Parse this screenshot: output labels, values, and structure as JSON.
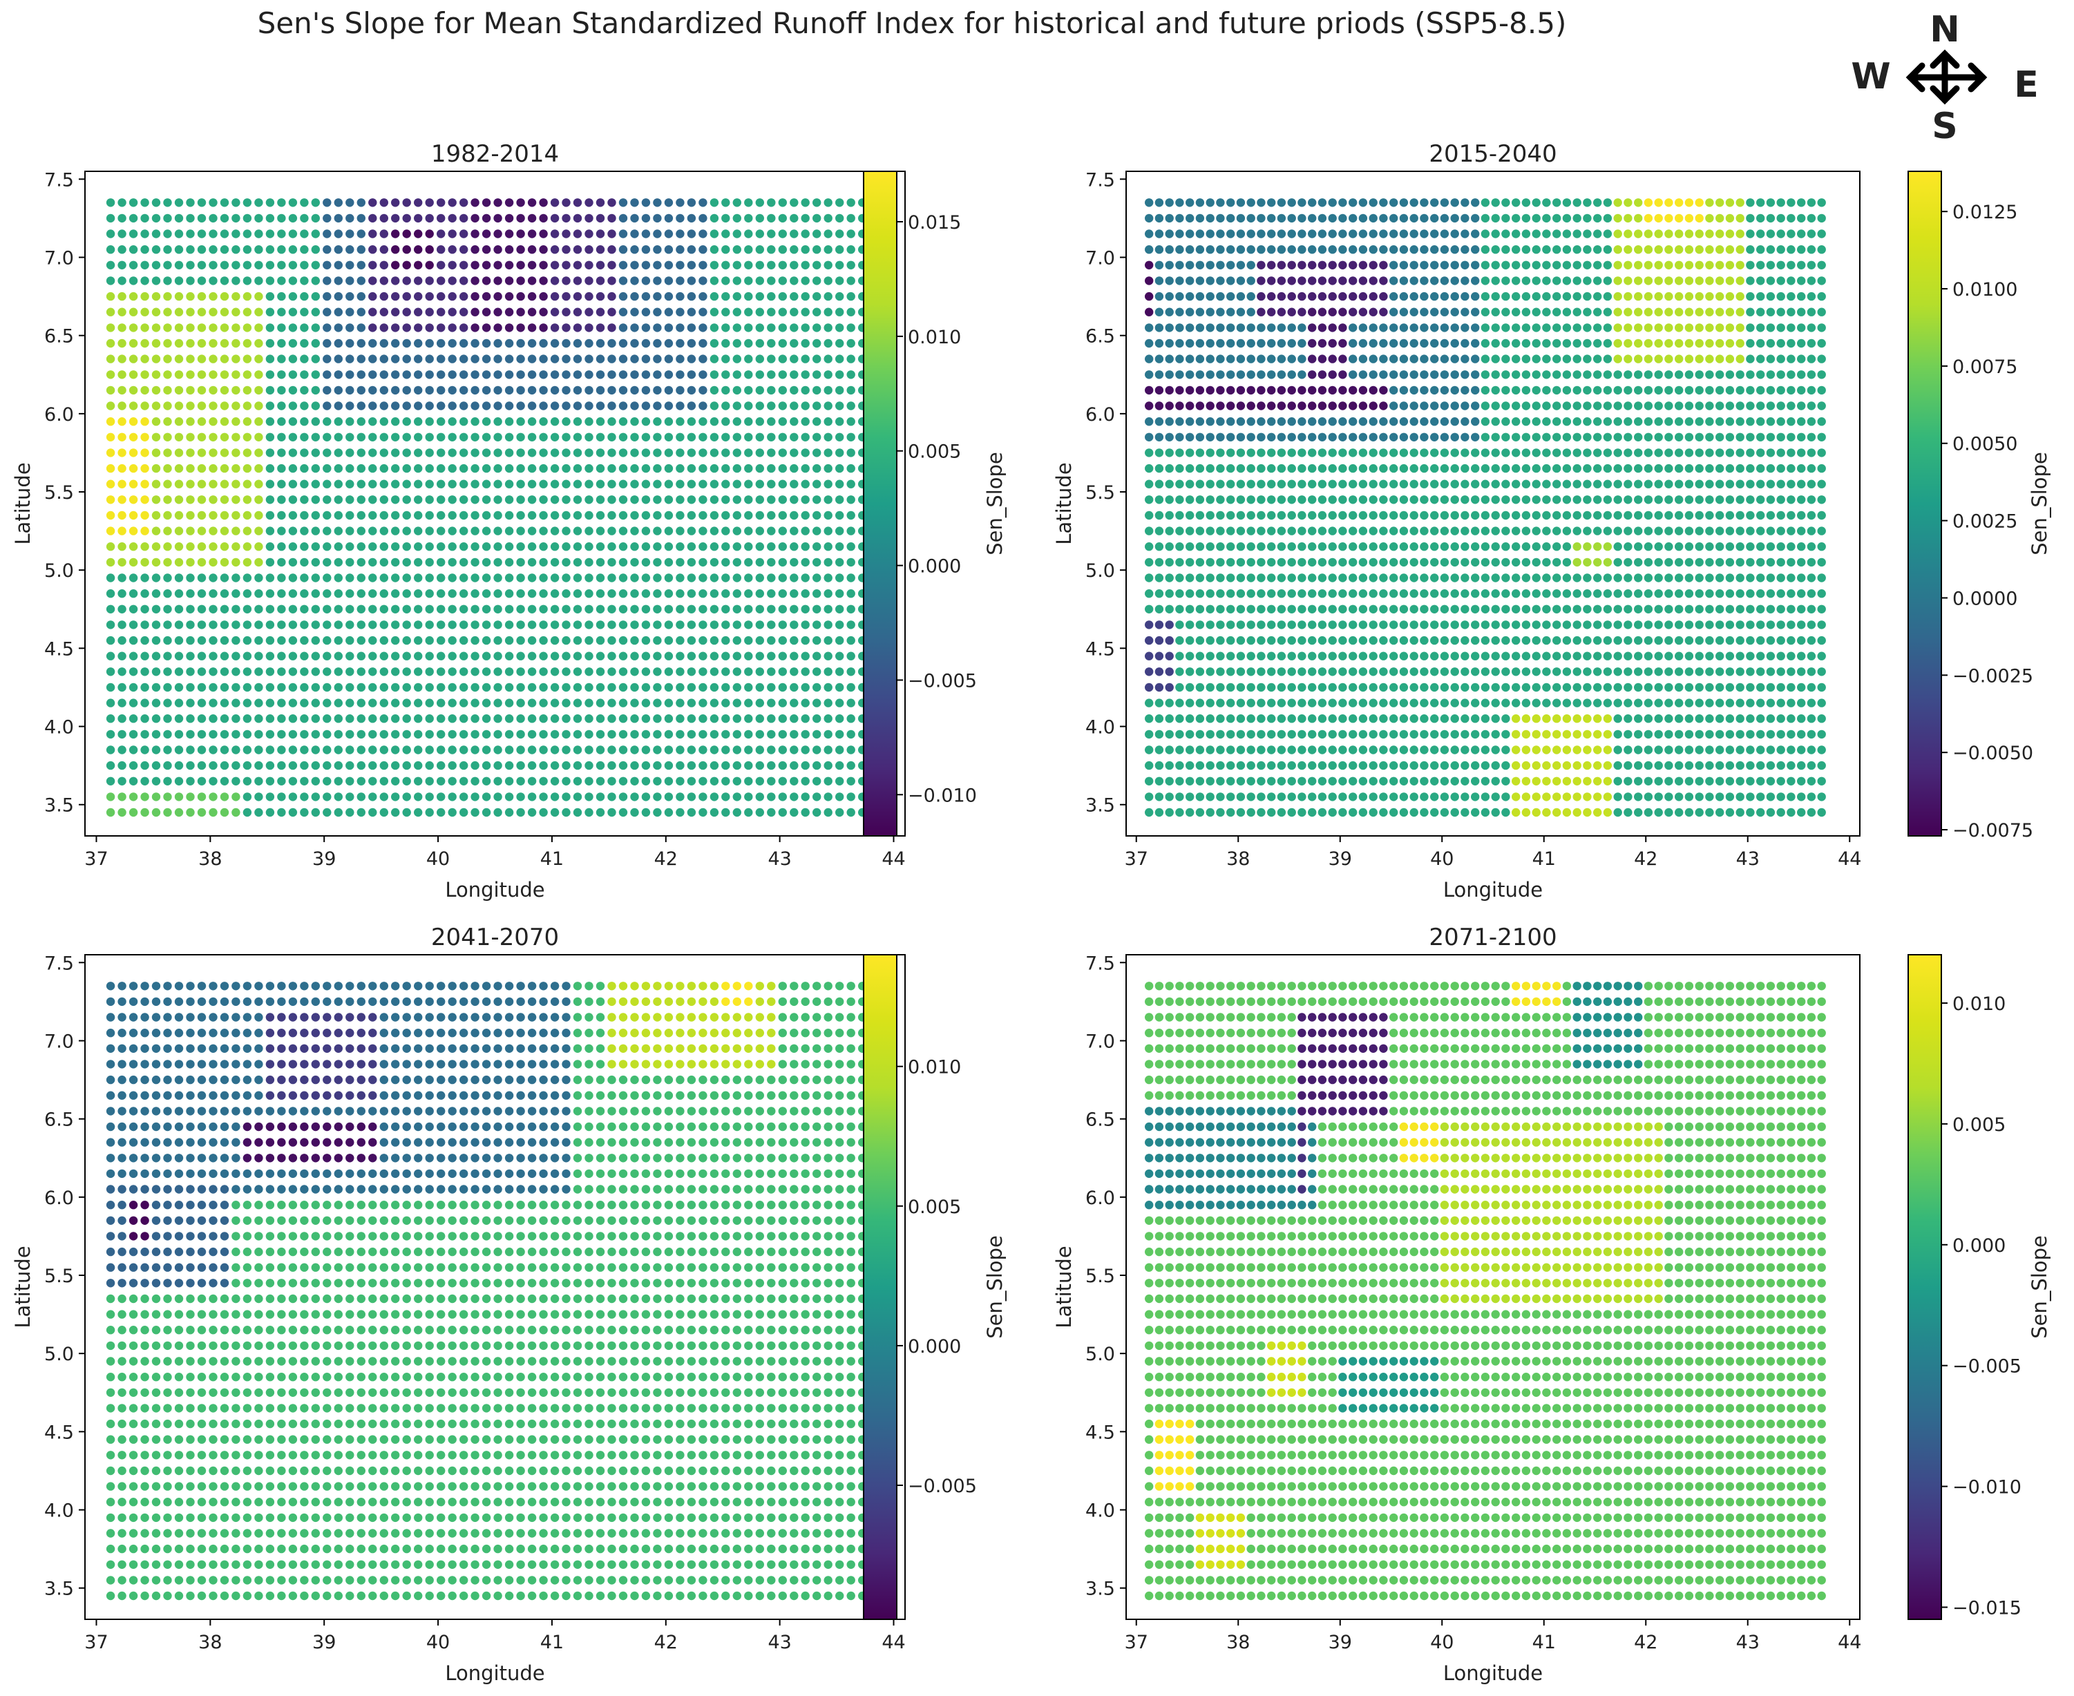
{
  "title": "Sen's Slope for Mean Standardized Runoff Index for historical and future priods (SSP5-8.5)",
  "compass": {
    "n": "N",
    "s": "S",
    "w": "W",
    "e": "E"
  },
  "colormap": "viridis",
  "chart_data": [
    {
      "type": "scatter",
      "title": "1982-2014",
      "xlabel": "Longitude",
      "ylabel": "Latitude",
      "xlim": [
        36.9,
        44.1
      ],
      "ylim": [
        3.3,
        7.55
      ],
      "xticks": [
        37,
        38,
        39,
        40,
        41,
        42,
        43,
        44
      ],
      "yticks": [
        3.5,
        4.0,
        4.5,
        5.0,
        5.5,
        6.0,
        6.5,
        7.0,
        7.5
      ],
      "colorbar": {
        "label": "Sen_Slope",
        "range": [
          -0.0118,
          0.0172
        ],
        "ticks": [
          -0.01,
          -0.005,
          0.0,
          0.005,
          0.01,
          0.015
        ],
        "tick_labels": [
          "−0.010",
          "−0.005",
          "0.000",
          "0.005",
          "0.010",
          "0.015"
        ]
      },
      "grid": {
        "lon_start": 37.125,
        "lat_start": 3.45,
        "step": 0.1,
        "cols": 67,
        "rows": 40
      },
      "base_value": 0.004,
      "regions": [
        {
          "lon": [
            39.0,
            42.4
          ],
          "lat": [
            6.0,
            7.4
          ],
          "value": -0.003
        },
        {
          "lon": [
            39.4,
            41.6
          ],
          "lat": [
            6.5,
            7.4
          ],
          "value": -0.0085
        },
        {
          "lon": [
            39.6,
            40.0
          ],
          "lat": [
            6.9,
            7.2
          ],
          "value": -0.0112
        },
        {
          "lon": [
            40.3,
            41.0
          ],
          "lat": [
            6.5,
            7.4
          ],
          "value": -0.0105
        },
        {
          "lon": [
            37.0,
            38.5
          ],
          "lat": [
            5.0,
            6.8
          ],
          "value": 0.011
        },
        {
          "lon": [
            37.1,
            37.5
          ],
          "lat": [
            5.2,
            6.0
          ],
          "value": 0.0165
        },
        {
          "lon": [
            37.0,
            38.3
          ],
          "lat": [
            3.4,
            3.6
          ],
          "value": 0.008
        }
      ]
    },
    {
      "type": "scatter",
      "title": "2015-2040",
      "xlabel": "Longitude",
      "ylabel": "Latitude",
      "xlim": [
        36.9,
        44.1
      ],
      "ylim": [
        3.3,
        7.55
      ],
      "xticks": [
        37,
        38,
        39,
        40,
        41,
        42,
        43,
        44
      ],
      "yticks": [
        3.5,
        4.0,
        4.5,
        5.0,
        5.5,
        6.0,
        6.5,
        7.0,
        7.5
      ],
      "colorbar": {
        "label": "Sen_Slope",
        "range": [
          -0.0077,
          0.0138
        ],
        "ticks": [
          -0.0075,
          -0.005,
          -0.0025,
          0.0,
          0.0025,
          0.005,
          0.0075,
          0.01,
          0.0125
        ],
        "tick_labels": [
          "−0.0075",
          "−0.0050",
          "−0.0025",
          "0.0000",
          "0.0025",
          "0.0050",
          "0.0075",
          "0.0100",
          "0.0125"
        ]
      },
      "grid": {
        "lon_start": 37.125,
        "lat_start": 3.45,
        "step": 0.1,
        "cols": 67,
        "rows": 40
      },
      "base_value": 0.004,
      "regions": [
        {
          "lon": [
            37.0,
            40.4
          ],
          "lat": [
            5.8,
            7.4
          ],
          "value": 0.0
        },
        {
          "lon": [
            37.0,
            37.4
          ],
          "lat": [
            4.2,
            4.7
          ],
          "value": -0.004
        },
        {
          "lon": [
            37.0,
            37.2
          ],
          "lat": [
            6.6,
            7.0
          ],
          "value": -0.0072
        },
        {
          "lon": [
            38.2,
            39.5
          ],
          "lat": [
            6.6,
            7.0
          ],
          "value": -0.006
        },
        {
          "lon": [
            37.0,
            39.5
          ],
          "lat": [
            6.05,
            6.2
          ],
          "value": -0.007
        },
        {
          "lon": [
            38.7,
            39.1
          ],
          "lat": [
            6.2,
            6.7
          ],
          "value": -0.0065
        },
        {
          "lon": [
            41.7,
            43.0
          ],
          "lat": [
            6.3,
            7.4
          ],
          "value": 0.0095
        },
        {
          "lon": [
            42.0,
            42.6
          ],
          "lat": [
            7.2,
            7.4
          ],
          "value": 0.0135
        },
        {
          "lon": [
            40.7,
            41.7
          ],
          "lat": [
            3.4,
            4.1
          ],
          "value": 0.0105
        },
        {
          "lon": [
            41.3,
            41.7
          ],
          "lat": [
            5.0,
            5.2
          ],
          "value": 0.009
        }
      ]
    },
    {
      "type": "scatter",
      "title": "2041-2070",
      "xlabel": "Longitude",
      "ylabel": "Latitude",
      "xlim": [
        36.9,
        44.1
      ],
      "ylim": [
        3.3,
        7.55
      ],
      "xticks": [
        37,
        38,
        39,
        40,
        41,
        42,
        43,
        44
      ],
      "yticks": [
        3.5,
        4.0,
        4.5,
        5.0,
        5.5,
        6.0,
        6.5,
        7.0,
        7.5
      ],
      "colorbar": {
        "label": "Sen_Slope",
        "range": [
          -0.0098,
          0.014
        ],
        "ticks": [
          -0.005,
          0.0,
          0.005,
          0.01
        ],
        "tick_labels": [
          "−0.005",
          "0.000",
          "0.005",
          "0.010"
        ]
      },
      "grid": {
        "lon_start": 37.125,
        "lat_start": 3.45,
        "step": 0.1,
        "cols": 67,
        "rows": 40
      },
      "base_value": 0.005,
      "regions": [
        {
          "lon": [
            37.0,
            41.2
          ],
          "lat": [
            6.0,
            7.4
          ],
          "value": -0.002
        },
        {
          "lon": [
            37.0,
            38.2
          ],
          "lat": [
            5.4,
            6.1
          ],
          "value": -0.003
        },
        {
          "lon": [
            38.3,
            39.5
          ],
          "lat": [
            6.2,
            6.5
          ],
          "value": -0.009
        },
        {
          "lon": [
            38.5,
            39.5
          ],
          "lat": [
            6.6,
            7.2
          ],
          "value": -0.006
        },
        {
          "lon": [
            37.3,
            37.5
          ],
          "lat": [
            5.7,
            6.0
          ],
          "value": -0.0095
        },
        {
          "lon": [
            41.5,
            43.0
          ],
          "lat": [
            6.8,
            7.4
          ],
          "value": 0.01
        },
        {
          "lon": [
            42.5,
            42.8
          ],
          "lat": [
            7.2,
            7.4
          ],
          "value": 0.0138
        }
      ]
    },
    {
      "type": "scatter",
      "title": "2071-2100",
      "xlabel": "Longitude",
      "ylabel": "Latitude",
      "xlim": [
        36.9,
        44.1
      ],
      "ylim": [
        3.3,
        7.55
      ],
      "xticks": [
        37,
        38,
        39,
        40,
        41,
        42,
        43,
        44
      ],
      "yticks": [
        3.5,
        4.0,
        4.5,
        5.0,
        5.5,
        6.0,
        6.5,
        7.0,
        7.5
      ],
      "colorbar": {
        "label": "Sen_Slope",
        "range": [
          -0.0155,
          0.012
        ],
        "ticks": [
          -0.015,
          -0.01,
          -0.005,
          0.0,
          0.005,
          0.01
        ],
        "tick_labels": [
          "−0.015",
          "−0.010",
          "−0.005",
          "0.000",
          "0.005",
          "0.010"
        ]
      },
      "grid": {
        "lon_start": 37.125,
        "lat_start": 3.45,
        "step": 0.1,
        "cols": 67,
        "rows": 40
      },
      "base_value": 0.003,
      "regions": [
        {
          "lon": [
            37.0,
            38.8
          ],
          "lat": [
            5.9,
            6.6
          ],
          "value": -0.004
        },
        {
          "lon": [
            38.6,
            39.5
          ],
          "lat": [
            6.5,
            7.2
          ],
          "value": -0.0135
        },
        {
          "lon": [
            38.6,
            38.7
          ],
          "lat": [
            6.0,
            6.5
          ],
          "value": -0.012
        },
        {
          "lon": [
            39.6,
            40.3
          ],
          "lat": [
            6.2,
            6.5
          ],
          "value": 0.0115
        },
        {
          "lon": [
            40.7,
            41.2
          ],
          "lat": [
            7.2,
            7.4
          ],
          "value": 0.0115
        },
        {
          "lon": [
            41.3,
            42.0
          ],
          "lat": [
            6.8,
            7.4
          ],
          "value": -0.003
        },
        {
          "lon": [
            37.2,
            37.6
          ],
          "lat": [
            4.1,
            4.6
          ],
          "value": 0.0118
        },
        {
          "lon": [
            37.6,
            38.1
          ],
          "lat": [
            3.6,
            4.0
          ],
          "value": 0.009
        },
        {
          "lon": [
            38.3,
            38.7
          ],
          "lat": [
            4.7,
            5.1
          ],
          "value": 0.0085
        },
        {
          "lon": [
            39.0,
            40.0
          ],
          "lat": [
            4.6,
            5.0
          ],
          "value": -0.002
        },
        {
          "lon": [
            40.0,
            42.2
          ],
          "lat": [
            5.3,
            6.5
          ],
          "value": 0.0065
        }
      ]
    }
  ]
}
